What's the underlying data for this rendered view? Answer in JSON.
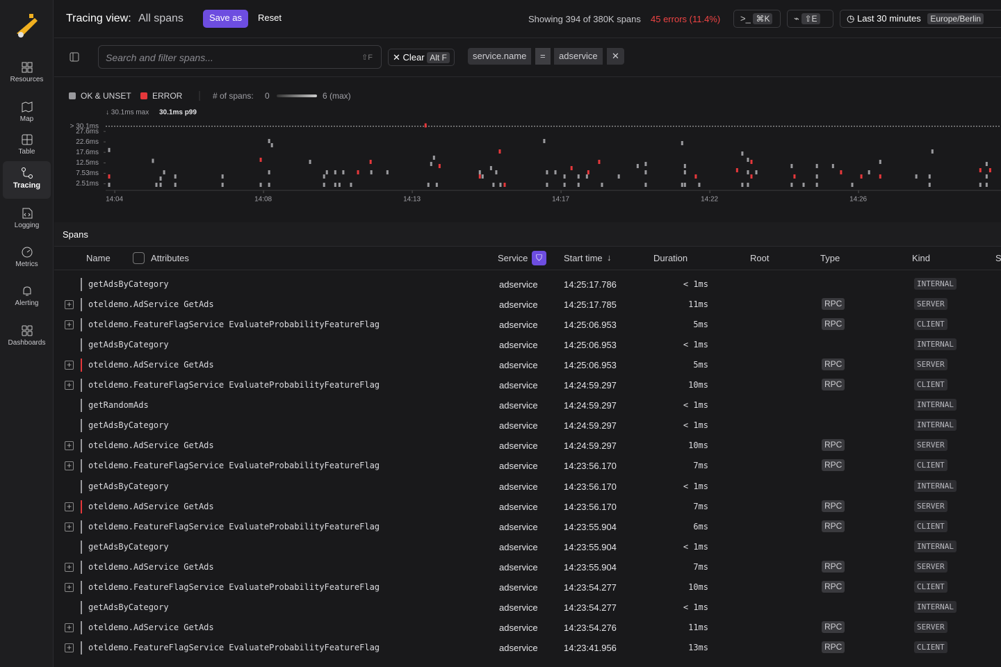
{
  "sidebar": {
    "items": [
      "Resources",
      "Map",
      "Table",
      "Tracing",
      "Logging",
      "Metrics",
      "Alerting",
      "Dashboards"
    ],
    "active": "Tracing"
  },
  "header": {
    "title": "Tracing view:",
    "view": "All spans",
    "save": "Save as",
    "reset": "Reset",
    "showing": "Showing 394 of 380K spans",
    "errors": "45 errors (11.4%)",
    "cmd_key": "⌘K",
    "explore_key": "⇧E",
    "time_range": "Last 30 minutes",
    "timezone": "Europe/Berlin"
  },
  "filter": {
    "placeholder": "Search and filter spans...",
    "shortcut": "⇧F",
    "clear": "Clear",
    "clear_key": "Alt F",
    "chip": {
      "field": "service.name",
      "op": "=",
      "value": "adservice"
    }
  },
  "chart_data": {
    "type": "scatter",
    "count_label": "# of spans:",
    "count_min": "0",
    "count_max": "6 (max)",
    "max_label": "↓ 30.1ms max",
    "p99_label": "30.1ms p99",
    "xlim": [
      3.74,
      29.32
    ],
    "xticks": [
      {
        "value": 4,
        "label": "14:04"
      },
      {
        "value": 8.25,
        "label": "14:08"
      },
      {
        "value": 12.5,
        "label": "14:13"
      },
      {
        "value": 16.75,
        "label": "14:17"
      },
      {
        "value": 21,
        "label": "14:22"
      },
      {
        "value": 25.25,
        "label": "14:26"
      }
    ],
    "ylim": [
      0,
      32
    ],
    "yticks": [
      {
        "value": 2.51,
        "label": "2.51ms"
      },
      {
        "value": 7.53,
        "label": "7.53ms"
      },
      {
        "value": 12.5,
        "label": "12.5ms"
      },
      {
        "value": 17.6,
        "label": "17.6ms"
      },
      {
        "value": 22.6,
        "label": "22.6ms"
      },
      {
        "value": 27.6,
        "label": "27.6ms"
      },
      {
        "value": 30.1,
        "label": "> 30.1ms"
      }
    ],
    "series": [
      {
        "name": "OK & UNSET",
        "color": "#9a9a9e",
        "x": [
          3.84,
          3.84,
          5.09,
          5.19,
          5.31,
          5.31,
          5.41,
          5.73,
          5.73,
          7.08,
          7.08,
          8.17,
          8.41,
          8.41,
          8.41,
          8.49,
          9.58,
          9.98,
          9.98,
          10.06,
          10.3,
          10.3,
          10.42,
          10.53,
          10.75,
          11.33,
          11.79,
          12.96,
          13.04,
          13.12,
          13.2,
          14.43,
          14.51,
          14.75,
          14.82,
          14.9,
          15.02,
          16.27,
          16.35,
          16.35,
          16.59,
          16.85,
          16.85,
          17.25,
          17.25,
          17.49,
          17.92,
          18.4,
          18.94,
          19.17,
          19.17,
          19.17,
          20.21,
          20.21,
          20.29,
          20.29,
          20.29,
          20.7,
          21.93,
          21.93,
          22.09,
          22.09,
          22.09,
          22.33,
          23.34,
          23.34,
          23.68,
          24.06,
          24.06,
          24.06,
          24.52,
          25.07,
          25.55,
          25.87,
          26.9,
          27.28,
          27.28,
          27.36,
          28.73,
          28.91,
          28.91,
          28.91
        ],
        "values": [
          18.7,
          2,
          13.5,
          2,
          5,
          2,
          8,
          6,
          2,
          6,
          2,
          2,
          23,
          8,
          2,
          21,
          13,
          6,
          2,
          8,
          8,
          2,
          2,
          8,
          2,
          8,
          8,
          2,
          12,
          15,
          2,
          8,
          6,
          10,
          2,
          8,
          2,
          23,
          8,
          2,
          8,
          6,
          2,
          6,
          2,
          6,
          2,
          6,
          11,
          12,
          8,
          2,
          22,
          2,
          11,
          8,
          2,
          2,
          17,
          2,
          14,
          8,
          2,
          8,
          11,
          2,
          2,
          11,
          6,
          2,
          11,
          2,
          8,
          13,
          6,
          6,
          2,
          18,
          2,
          12,
          6,
          2
        ]
      },
      {
        "name": "ERROR",
        "color": "#e5383b",
        "x": [
          3.84,
          8.17,
          10.95,
          11.31,
          12.88,
          13.28,
          14.43,
          15.0,
          15.14,
          17.05,
          17.53,
          17.84,
          20.6,
          21.78,
          22.19,
          22.19,
          23.42,
          24.75,
          25.33,
          25.87,
          28.73,
          29.01
        ],
        "values": [
          6,
          14,
          8,
          13,
          30.5,
          11,
          6,
          18,
          2,
          10,
          8,
          13,
          6,
          9,
          13,
          6,
          6,
          8,
          6,
          6,
          9,
          9
        ]
      }
    ]
  },
  "table": {
    "title": "Spans",
    "columns": [
      "Name",
      "Attributes",
      "Service",
      "Start time",
      "Duration",
      "Root",
      "Type",
      "Kind",
      "S"
    ],
    "rows": [
      {
        "expand": false,
        "error": false,
        "name": "getAdsByCategory",
        "service": "adservice",
        "start": "14:25:17.786",
        "duration": "< 1ms",
        "kind": "INTERNAL"
      },
      {
        "expand": true,
        "error": false,
        "name": "oteldemo.AdService GetAds",
        "service": "adservice",
        "start": "14:25:17.785",
        "duration": "11ms",
        "type": "RPC",
        "kind": "SERVER"
      },
      {
        "expand": true,
        "error": false,
        "name": "oteldemo.FeatureFlagService EvaluateProbabilityFeatureFlag",
        "service": "adservice",
        "start": "14:25:06.953",
        "duration": "5ms",
        "type": "RPC",
        "kind": "CLIENT"
      },
      {
        "expand": false,
        "error": false,
        "name": "getAdsByCategory",
        "service": "adservice",
        "start": "14:25:06.953",
        "duration": "< 1ms",
        "kind": "INTERNAL"
      },
      {
        "expand": true,
        "error": true,
        "name": "oteldemo.AdService GetAds",
        "service": "adservice",
        "start": "14:25:06.953",
        "duration": "5ms",
        "type": "RPC",
        "kind": "SERVER"
      },
      {
        "expand": true,
        "error": false,
        "name": "oteldemo.FeatureFlagService EvaluateProbabilityFeatureFlag",
        "service": "adservice",
        "start": "14:24:59.297",
        "duration": "10ms",
        "type": "RPC",
        "kind": "CLIENT"
      },
      {
        "expand": false,
        "error": false,
        "name": "getRandomAds",
        "service": "adservice",
        "start": "14:24:59.297",
        "duration": "< 1ms",
        "kind": "INTERNAL"
      },
      {
        "expand": false,
        "error": false,
        "name": "getAdsByCategory",
        "service": "adservice",
        "start": "14:24:59.297",
        "duration": "< 1ms",
        "kind": "INTERNAL"
      },
      {
        "expand": true,
        "error": false,
        "name": "oteldemo.AdService GetAds",
        "service": "adservice",
        "start": "14:24:59.297",
        "duration": "10ms",
        "type": "RPC",
        "kind": "SERVER"
      },
      {
        "expand": true,
        "error": false,
        "name": "oteldemo.FeatureFlagService EvaluateProbabilityFeatureFlag",
        "service": "adservice",
        "start": "14:23:56.170",
        "duration": "7ms",
        "type": "RPC",
        "kind": "CLIENT"
      },
      {
        "expand": false,
        "error": false,
        "name": "getAdsByCategory",
        "service": "adservice",
        "start": "14:23:56.170",
        "duration": "< 1ms",
        "kind": "INTERNAL"
      },
      {
        "expand": true,
        "error": true,
        "name": "oteldemo.AdService GetAds",
        "service": "adservice",
        "start": "14:23:56.170",
        "duration": "7ms",
        "type": "RPC",
        "kind": "SERVER"
      },
      {
        "expand": true,
        "error": false,
        "name": "oteldemo.FeatureFlagService EvaluateProbabilityFeatureFlag",
        "service": "adservice",
        "start": "14:23:55.904",
        "duration": "6ms",
        "type": "RPC",
        "kind": "CLIENT"
      },
      {
        "expand": false,
        "error": false,
        "name": "getAdsByCategory",
        "service": "adservice",
        "start": "14:23:55.904",
        "duration": "< 1ms",
        "kind": "INTERNAL"
      },
      {
        "expand": true,
        "error": false,
        "name": "oteldemo.AdService GetAds",
        "service": "adservice",
        "start": "14:23:55.904",
        "duration": "7ms",
        "type": "RPC",
        "kind": "SERVER"
      },
      {
        "expand": true,
        "error": false,
        "name": "oteldemo.FeatureFlagService EvaluateProbabilityFeatureFlag",
        "service": "adservice",
        "start": "14:23:54.277",
        "duration": "10ms",
        "type": "RPC",
        "kind": "CLIENT"
      },
      {
        "expand": false,
        "error": false,
        "name": "getAdsByCategory",
        "service": "adservice",
        "start": "14:23:54.277",
        "duration": "< 1ms",
        "kind": "INTERNAL"
      },
      {
        "expand": true,
        "error": false,
        "name": "oteldemo.AdService GetAds",
        "service": "adservice",
        "start": "14:23:54.276",
        "duration": "11ms",
        "type": "RPC",
        "kind": "SERVER"
      },
      {
        "expand": true,
        "error": false,
        "name": "oteldemo.FeatureFlagService EvaluateProbabilityFeatureFlag",
        "service": "adservice",
        "start": "14:23:41.956",
        "duration": "13ms",
        "type": "RPC",
        "kind": "CLIENT"
      }
    ]
  }
}
